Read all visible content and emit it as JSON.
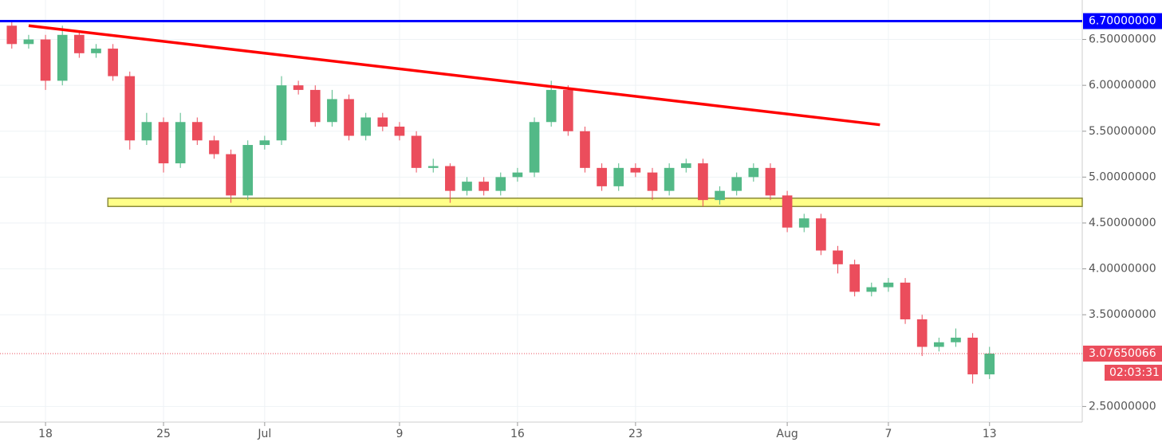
{
  "chart_data": {
    "type": "candlestick",
    "x": [
      167,
      168,
      169,
      170,
      171,
      172,
      173,
      174,
      175,
      176,
      177,
      178,
      179,
      180,
      181,
      182,
      183,
      184,
      185,
      186,
      187,
      188,
      189,
      190,
      191,
      192,
      193,
      194,
      195,
      196,
      197,
      198,
      199,
      200,
      201,
      202,
      203,
      204,
      205,
      206,
      207,
      208,
      209,
      210,
      211,
      212,
      213,
      214,
      215,
      216,
      217,
      218,
      219,
      220,
      221,
      222,
      223,
      224,
      225
    ],
    "open": [
      6.65,
      6.45,
      6.5,
      6.05,
      6.55,
      6.35,
      6.4,
      6.1,
      5.4,
      5.6,
      5.15,
      5.6,
      5.4,
      5.25,
      4.8,
      5.35,
      5.4,
      6.0,
      5.95,
      5.6,
      5.85,
      5.45,
      5.65,
      5.55,
      5.45,
      5.1,
      5.12,
      4.85,
      4.95,
      4.85,
      5.0,
      5.05,
      5.6,
      5.95,
      5.5,
      5.1,
      4.9,
      5.1,
      5.05,
      4.85,
      5.1,
      5.15,
      4.75,
      4.85,
      5.0,
      5.1,
      4.8,
      4.45,
      4.55,
      4.2,
      4.05,
      3.75,
      3.8,
      3.85,
      3.45,
      3.15,
      3.2,
      3.25,
      2.85
    ],
    "high": [
      6.7,
      6.55,
      6.55,
      6.65,
      6.6,
      6.45,
      6.45,
      6.15,
      5.7,
      5.65,
      5.7,
      5.65,
      5.45,
      5.3,
      5.4,
      5.45,
      6.1,
      6.05,
      6.0,
      5.95,
      5.9,
      5.7,
      5.7,
      5.6,
      5.5,
      5.2,
      5.15,
      5.0,
      5.0,
      5.05,
      5.1,
      5.65,
      6.05,
      6.0,
      5.55,
      5.15,
      5.15,
      5.15,
      5.1,
      5.15,
      5.2,
      5.2,
      4.9,
      5.05,
      5.15,
      5.15,
      4.85,
      4.6,
      4.6,
      4.25,
      4.1,
      3.85,
      3.9,
      3.9,
      3.5,
      3.25,
      3.35,
      3.3,
      3.15
    ],
    "low": [
      6.4,
      6.4,
      5.95,
      6.0,
      6.3,
      6.3,
      6.05,
      5.3,
      5.35,
      5.05,
      5.1,
      5.35,
      5.2,
      4.72,
      4.75,
      5.3,
      5.35,
      5.9,
      5.55,
      5.55,
      5.4,
      5.4,
      5.5,
      5.4,
      5.05,
      5.05,
      4.72,
      4.8,
      4.8,
      4.8,
      4.95,
      5.0,
      5.55,
      5.45,
      5.05,
      4.85,
      4.85,
      5.0,
      4.75,
      4.8,
      5.05,
      4.68,
      4.7,
      4.8,
      4.95,
      4.75,
      4.4,
      4.4,
      4.15,
      3.95,
      3.7,
      3.7,
      3.75,
      3.4,
      3.05,
      3.1,
      3.15,
      2.75,
      2.8
    ],
    "close": [
      6.45,
      6.5,
      6.05,
      6.55,
      6.35,
      6.4,
      6.1,
      5.4,
      5.6,
      5.15,
      5.6,
      5.4,
      5.25,
      4.8,
      5.35,
      5.4,
      6.0,
      5.95,
      5.6,
      5.85,
      5.45,
      5.65,
      5.55,
      5.45,
      5.1,
      5.12,
      4.85,
      4.95,
      4.85,
      5.0,
      5.05,
      5.6,
      5.95,
      5.5,
      5.1,
      4.9,
      5.1,
      5.05,
      4.85,
      5.1,
      5.15,
      4.75,
      4.85,
      5.0,
      5.1,
      4.8,
      4.45,
      4.55,
      4.2,
      4.05,
      3.75,
      3.8,
      3.85,
      3.45,
      3.15,
      3.2,
      3.25,
      2.85,
      3.07650066
    ],
    "up_color": "#53b987",
    "down_color": "#eb4d5c",
    "xlim": [
      166.3,
      230.5
    ],
    "xticks": [
      {
        "value": 169,
        "label": "18"
      },
      {
        "value": 176,
        "label": "25"
      },
      {
        "value": 182,
        "label": "Jul"
      },
      {
        "value": 190,
        "label": "9"
      },
      {
        "value": 197,
        "label": "16"
      },
      {
        "value": 204,
        "label": "23"
      },
      {
        "value": 213,
        "label": "Aug"
      },
      {
        "value": 219,
        "label": "7"
      },
      {
        "value": 225,
        "label": "13"
      }
    ],
    "ylim": [
      2.33,
      6.93
    ],
    "yticks": [
      {
        "value": 2.5,
        "label": "2.50000000"
      },
      {
        "value": 3.5,
        "label": "3.50000000"
      },
      {
        "value": 4,
        "label": "4.00000000"
      },
      {
        "value": 4.5,
        "label": "4.50000000"
      },
      {
        "value": 5,
        "label": "5.00000000"
      },
      {
        "value": 5.5,
        "label": "5.50000000"
      },
      {
        "value": 6,
        "label": "6.00000000"
      },
      {
        "value": 6.5,
        "label": "6.50000000"
      }
    ],
    "grid": true,
    "resistance": {
      "value": 6.7,
      "label": "6.70000000",
      "color": "#0000ff"
    },
    "trendline": {
      "x": [
        168,
        218.5
      ],
      "y": [
        6.65,
        5.57
      ],
      "color": "#ff0000"
    },
    "support_zone": {
      "x_start": 172.7,
      "y": [
        4.68,
        4.77
      ],
      "color": "#ffff88"
    },
    "last_price": {
      "value": 3.07650066,
      "label": "3.07650066",
      "countdown": "02:03:31",
      "color": "#eb4d5c"
    }
  }
}
